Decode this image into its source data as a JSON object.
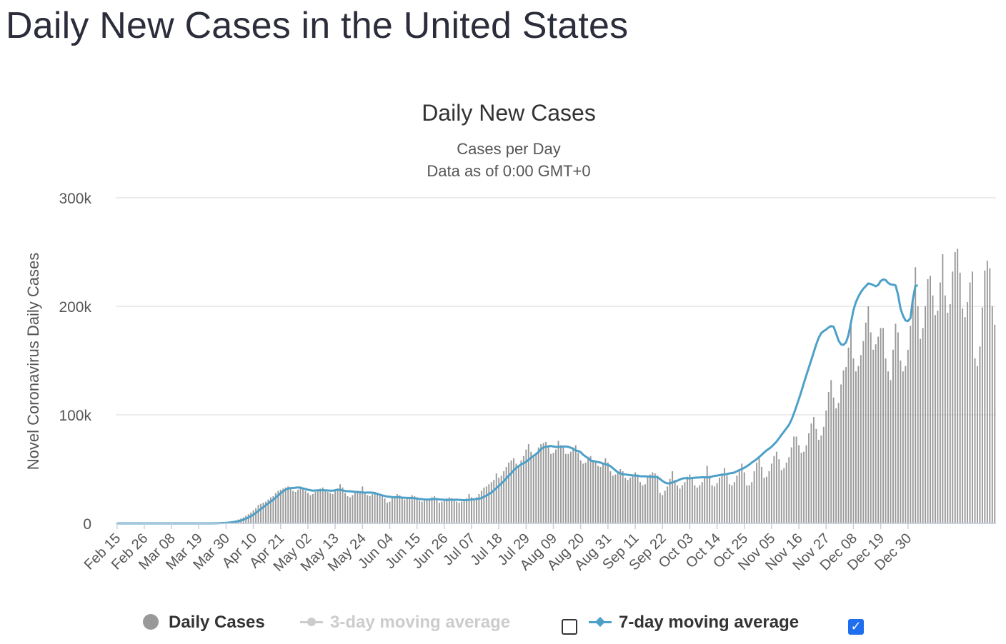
{
  "page": {
    "heading": "Daily New Cases in the United States"
  },
  "legend": {
    "daily": "Daily Cases",
    "ma3": "3-day moving average",
    "ma7": "7-day moving average",
    "ma3_checked": false,
    "ma7_checked": true,
    "check_glyph": "✓"
  },
  "chart_data": {
    "type": "bar",
    "title": "Daily New Cases",
    "subtitle": "Cases per Day",
    "subtitle2": "Data as of 0:00 GMT+0",
    "ylabel": "Novel Coronavirus Daily Cases",
    "xlabel": "",
    "ylim": [
      0,
      300000
    ],
    "y_ticks": [
      0,
      100000,
      200000,
      300000
    ],
    "y_tick_labels": [
      "0",
      "100k",
      "200k",
      "300k"
    ],
    "x_tick_labels": [
      "Feb 15",
      "Feb 26",
      "Mar 08",
      "Mar 19",
      "Mar 30",
      "Apr 10",
      "Apr 21",
      "May 02",
      "May 13",
      "May 24",
      "Jun 04",
      "Jun 15",
      "Jun 26",
      "Jul 07",
      "Jul 18",
      "Jul 29",
      "Aug 09",
      "Aug 20",
      "Aug 31",
      "Sep 11",
      "Sep 22",
      "Oct 03",
      "Oct 14",
      "Oct 25",
      "Nov 05",
      "Nov 16",
      "Nov 27",
      "Dec 08",
      "Dec 19",
      "Dec 30"
    ],
    "x_tick_interval_days": 11,
    "start_date": "Feb 15",
    "grid": true,
    "legend_position": "bottom",
    "colors": {
      "bars": "#999999",
      "ma7": "#4da0c8",
      "ma3": "#cccccc",
      "grid": "#e6e6e6"
    },
    "series": [
      {
        "name": "Daily Cases",
        "type": "bar",
        "values": [
          0,
          0,
          0,
          0,
          0,
          0,
          0,
          0,
          0,
          0,
          0,
          0,
          0,
          0,
          0,
          0,
          0,
          0,
          0,
          0,
          0,
          0,
          0,
          0,
          0,
          0,
          0,
          0,
          0,
          0,
          0,
          0,
          0,
          0,
          0,
          0,
          0,
          0,
          100,
          200,
          300,
          400,
          500,
          700,
          900,
          1200,
          1500,
          2100,
          2800,
          3600,
          4500,
          5500,
          7000,
          8500,
          10000,
          12000,
          14000,
          17000,
          18000,
          19000,
          20000,
          22000,
          24000,
          25000,
          28000,
          30000,
          31000,
          32000,
          33000,
          34000,
          32000,
          30000,
          29000,
          31000,
          34000,
          32000,
          30000,
          28000,
          26000,
          27000,
          29000,
          31000,
          32000,
          33000,
          30000,
          29000,
          28000,
          27000,
          30000,
          32000,
          36000,
          33000,
          28000,
          25000,
          24000,
          26000,
          28000,
          30000,
          29000,
          34000,
          29000,
          26000,
          25000,
          27000,
          29000,
          28000,
          27000,
          25000,
          23000,
          19000,
          20000,
          23000,
          25000,
          27000,
          26000,
          23000,
          22000,
          23000,
          24000,
          26000,
          25000,
          24000,
          21000,
          20000,
          21000,
          22000,
          23000,
          24000,
          25000,
          22000,
          19000,
          20000,
          22000,
          23000,
          24000,
          23000,
          22000,
          20000,
          19000,
          20000,
          22000,
          23000,
          27000,
          24000,
          22000,
          24000,
          27000,
          30000,
          33000,
          34000,
          36000,
          38000,
          40000,
          46000,
          42000,
          44000,
          48000,
          52000,
          56000,
          58000,
          60000,
          55000,
          53000,
          58000,
          62000,
          68000,
          73000,
          66000,
          62000,
          64000,
          70000,
          73000,
          74000,
          75000,
          72000,
          64000,
          65000,
          68000,
          76000,
          72000,
          70000,
          64000,
          64000,
          66000,
          70000,
          72000,
          65000,
          58000,
          55000,
          56000,
          60000,
          62000,
          58000,
          57000,
          53000,
          52000,
          55000,
          60000,
          56000,
          48000,
          44000,
          45000,
          47000,
          50000,
          48000,
          42000,
          40000,
          42000,
          45000,
          47000,
          45000,
          38000,
          35000,
          36000,
          43000,
          45000,
          47000,
          46000,
          44000,
          28000,
          26000,
          30000,
          34000,
          41000,
          48000,
          40000,
          35000,
          32000,
          35000,
          38000,
          43000,
          45000,
          41000,
          35000,
          33000,
          35000,
          38000,
          43000,
          53000,
          44000,
          35000,
          34000,
          37000,
          42000,
          46000,
          51000,
          44000,
          36000,
          35000,
          38000,
          44000,
          48000,
          55000,
          47000,
          35000,
          35000,
          38000,
          48000,
          56000,
          60000,
          52000,
          42000,
          43000,
          48000,
          55000,
          62000,
          66000,
          59000,
          49000,
          51000,
          56000,
          61000,
          70000,
          80000,
          80000,
          72000,
          65000,
          66000,
          72000,
          83000,
          92000,
          98000,
          87000,
          77000,
          81000,
          89000,
          104000,
          121000,
          132000,
          116000,
          106000,
          111000,
          128000,
          141000,
          144000,
          162000,
          186000,
          152000,
          140000,
          145000,
          155000,
          168000,
          185000,
          200000,
          176000,
          160000,
          165000,
          172000,
          180000,
          180000,
          152000,
          140000,
          132000,
          160000,
          184000,
          176000,
          150000,
          140000,
          145000,
          160000,
          182000,
          205000,
          236000,
          200000,
          170000,
          180000,
          200000,
          225000,
          228000,
          210000,
          192000,
          196000,
          222000,
          248000,
          210000,
          194000,
          202000,
          232000,
          250000,
          253000,
          231000,
          198000,
          190000,
          204000,
          222000,
          232000,
          152000,
          145000,
          163000,
          199000,
          233000,
          242000,
          235000,
          200000,
          183000
        ]
      },
      {
        "name": "7-day moving average",
        "type": "line",
        "values": [
          0,
          0,
          0,
          0,
          0,
          0,
          0,
          0,
          0,
          0,
          0,
          0,
          0,
          0,
          0,
          0,
          0,
          0,
          0,
          0,
          0,
          0,
          0,
          0,
          0,
          0,
          0,
          0,
          0,
          0,
          0,
          0,
          0,
          0,
          0,
          0,
          0,
          0,
          0,
          100,
          100,
          200,
          300,
          400,
          500,
          700,
          900,
          1200,
          1500,
          2000,
          2600,
          3400,
          4400,
          5300,
          6600,
          7900,
          9600,
          11300,
          13100,
          14900,
          16600,
          18300,
          20100,
          21700,
          23700,
          25700,
          27700,
          29400,
          31100,
          32000,
          32500,
          32600,
          32800,
          33100,
          32800,
          32200,
          31600,
          31000,
          30500,
          30100,
          30300,
          30400,
          30400,
          30600,
          30400,
          30300,
          30100,
          30100,
          30500,
          31000,
          30900,
          30300,
          29800,
          29600,
          29500,
          29300,
          29000,
          28900,
          28700,
          28400,
          28300,
          28400,
          28400,
          28300,
          27800,
          27200,
          26400,
          25700,
          25200,
          24700,
          24500,
          24100,
          24100,
          24000,
          24000,
          23700,
          23600,
          23400,
          23400,
          23400,
          23100,
          22800,
          22500,
          22300,
          22000,
          21900,
          22000,
          22200,
          22400,
          22400,
          22000,
          21900,
          21700,
          21500,
          21700,
          21800,
          21700,
          21800,
          21700,
          21500,
          21400,
          21400,
          21600,
          22000,
          22100,
          22400,
          22800,
          23200,
          24500,
          25500,
          27000,
          28300,
          30300,
          32400,
          34400,
          36600,
          38700,
          41400,
          43800,
          46100,
          48800,
          51000,
          52700,
          54300,
          55400,
          56700,
          58500,
          60400,
          62200,
          63800,
          65800,
          68300,
          69900,
          70500,
          71000,
          71300,
          70800,
          70400,
          70500,
          70600,
          70800,
          70800,
          70500,
          69700,
          68600,
          67200,
          66600,
          65600,
          63200,
          61600,
          60100,
          58100,
          57300,
          57000,
          56400,
          56000,
          55100,
          54400,
          53900,
          52700,
          50800,
          48900,
          47100,
          45900,
          45300,
          45100,
          44700,
          44400,
          44200,
          44000,
          43800,
          43400,
          43300,
          43300,
          43200,
          43000,
          42900,
          42700,
          42500,
          40800,
          39000,
          37600,
          36800,
          36800,
          37800,
          38400,
          39300,
          40400,
          41300,
          41600,
          41600,
          41400,
          41800,
          42000,
          42200,
          42300,
          42500,
          42400,
          42400,
          42300,
          43200,
          43700,
          44000,
          44400,
          44800,
          45000,
          45400,
          46000,
          46400,
          46800,
          48000,
          49100,
          50000,
          51200,
          52600,
          54100,
          56000,
          57500,
          59100,
          61200,
          63100,
          65300,
          67300,
          68800,
          70600,
          73000,
          75300,
          78400,
          81600,
          84500,
          87600,
          90700,
          95300,
          101200,
          107700,
          114500,
          121500,
          129100,
          136400,
          143400,
          150400,
          157700,
          164800,
          171000,
          175300,
          177200,
          178600,
          180500,
          181800,
          181200,
          175100,
          168400,
          164900,
          164500,
          166700,
          173500,
          184800,
          196300,
          203800,
          208900,
          213000,
          216200,
          218600,
          221100,
          220500,
          219600,
          218400,
          219600,
          223400,
          224700,
          224200,
          221500,
          220200,
          219800,
          219300,
          210600,
          197900,
          191300,
          186900,
          186400,
          189200,
          206800,
          218900,
          219200
        ]
      }
    ]
  }
}
